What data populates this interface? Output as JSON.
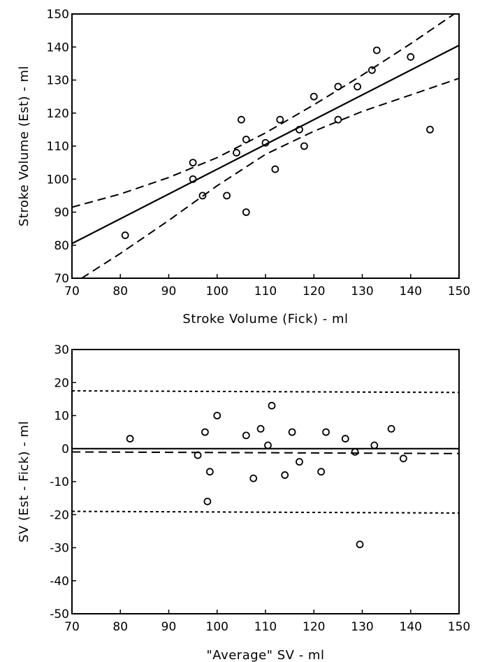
{
  "chart_data": [
    {
      "type": "scatter",
      "xlabel": "Stroke Volume (Fick)  -  ml",
      "ylabel": "Stroke Volume (Est)  -  ml",
      "xlim": [
        70,
        150
      ],
      "ylim": [
        70,
        150
      ],
      "xticks": [
        70,
        80,
        90,
        100,
        110,
        120,
        130,
        140,
        150
      ],
      "yticks": [
        70,
        80,
        90,
        100,
        110,
        120,
        130,
        140,
        150
      ],
      "grid": false,
      "series": [
        {
          "type": "scatter",
          "marker": "open-circle",
          "points": [
            [
              81,
              83
            ],
            [
              95,
              105
            ],
            [
              95,
              100
            ],
            [
              97,
              95
            ],
            [
              102,
              95
            ],
            [
              104,
              108
            ],
            [
              105,
              118
            ],
            [
              106,
              112
            ],
            [
              106,
              90
            ],
            [
              110,
              111
            ],
            [
              112,
              103
            ],
            [
              113,
              118
            ],
            [
              117,
              115
            ],
            [
              118,
              110
            ],
            [
              120,
              125
            ],
            [
              125,
              128
            ],
            [
              125,
              118
            ],
            [
              129,
              128
            ],
            [
              132,
              133
            ],
            [
              133,
              139
            ],
            [
              140,
              137
            ],
            [
              144,
              115
            ]
          ]
        },
        {
          "type": "line",
          "style": "solid",
          "points": [
            [
              70,
              80.5
            ],
            [
              150,
              140.5
            ]
          ]
        },
        {
          "type": "line",
          "style": "dashed",
          "points": [
            [
              70,
              91.5
            ],
            [
              80,
              95.5
            ],
            [
              90,
              100.5
            ],
            [
              100,
              106.5
            ],
            [
              110,
              114
            ],
            [
              120,
              122.5
            ],
            [
              130,
              131.5
            ],
            [
              140,
              141
            ],
            [
              150,
              151
            ]
          ]
        },
        {
          "type": "line",
          "style": "dashed",
          "points": [
            [
              72,
              70
            ],
            [
              80,
              77.5
            ],
            [
              90,
              87.5
            ],
            [
              100,
              98
            ],
            [
              110,
              107.5
            ],
            [
              120,
              114.5
            ],
            [
              130,
              120.5
            ],
            [
              140,
              125.5
            ],
            [
              150,
              130.5
            ]
          ]
        }
      ]
    },
    {
      "type": "scatter",
      "xlabel": "\"Average\"  SV  -  ml",
      "ylabel": "SV (Est  -  Fick)  -  ml",
      "xlim": [
        70,
        150
      ],
      "ylim": [
        -50,
        30
      ],
      "xticks": [
        70,
        80,
        90,
        100,
        110,
        120,
        130,
        140,
        150
      ],
      "yticks": [
        -50,
        -40,
        -30,
        -20,
        -10,
        0,
        10,
        20,
        30
      ],
      "grid": false,
      "series": [
        {
          "type": "scatter",
          "marker": "open-circle",
          "points": [
            [
              82,
              3
            ],
            [
              96,
              -2
            ],
            [
              97.5,
              5
            ],
            [
              98,
              -16
            ],
            [
              98.5,
              -7
            ],
            [
              100,
              10
            ],
            [
              106,
              4
            ],
            [
              107.5,
              -9
            ],
            [
              109,
              6
            ],
            [
              110.5,
              1
            ],
            [
              111.3,
              13
            ],
            [
              114,
              -8
            ],
            [
              115.5,
              5
            ],
            [
              117,
              -4
            ],
            [
              121.5,
              -7
            ],
            [
              122.5,
              5
            ],
            [
              126.5,
              3
            ],
            [
              128.5,
              -1
            ],
            [
              129.5,
              -29
            ],
            [
              132.5,
              1
            ],
            [
              136,
              6
            ],
            [
              138.5,
              -3
            ]
          ]
        },
        {
          "type": "line",
          "style": "solid",
          "points": [
            [
              70,
              0
            ],
            [
              150,
              0
            ]
          ]
        },
        {
          "type": "line",
          "style": "dashed",
          "points": [
            [
              70,
              -1
            ],
            [
              150,
              -1.5
            ]
          ]
        },
        {
          "type": "line",
          "style": "dotted",
          "points": [
            [
              70,
              17.5
            ],
            [
              150,
              17
            ]
          ]
        },
        {
          "type": "line",
          "style": "dotted",
          "points": [
            [
              70,
              -19
            ],
            [
              150,
              -19.5
            ]
          ]
        }
      ]
    }
  ]
}
